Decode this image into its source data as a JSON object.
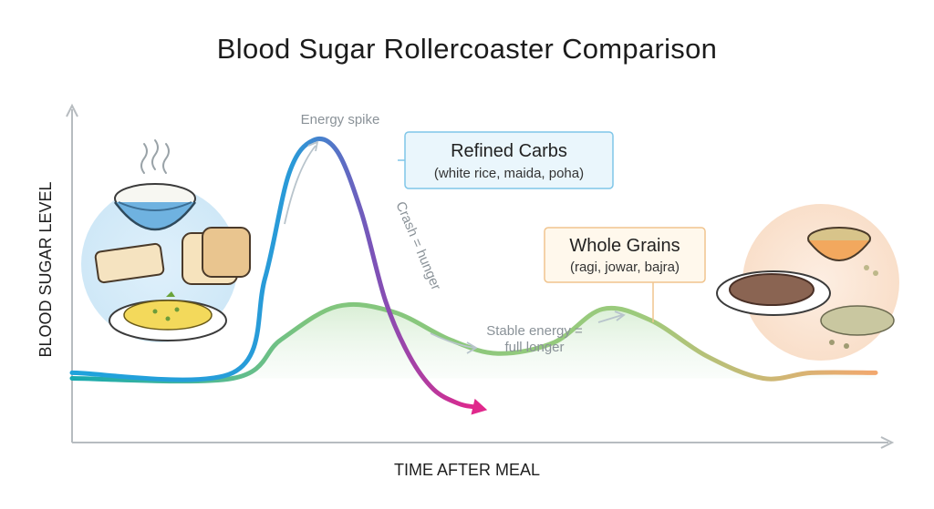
{
  "chart_data": {
    "type": "line",
    "title": "Blood Sugar Rollercoaster Comparison",
    "xlabel": "TIME AFTER MEAL",
    "ylabel": "BLOOD SUGAR LEVEL",
    "xlim": [
      0,
      100
    ],
    "ylim": [
      0,
      100
    ],
    "grid": false,
    "series": [
      {
        "name": "Refined Carbs",
        "subtitle": "(white rice, maida, poha)",
        "color_start": "#1fa3dc",
        "color_end": "#e0288c",
        "x": [
          0,
          20,
          24,
          27,
          30,
          33,
          36,
          39,
          42,
          45,
          48,
          51
        ],
        "y": [
          14,
          14,
          48,
          86,
          98,
          94,
          72,
          40,
          20,
          8,
          3,
          1
        ]
      },
      {
        "name": "Whole Grains",
        "subtitle": "(ragi, jowar, bajra)",
        "color_start": "#16a9b0",
        "color_mid": "#8bc77a",
        "color_end": "#f2a86e",
        "x": [
          0,
          20,
          26,
          33,
          40,
          47,
          53,
          60,
          66,
          72,
          79,
          86,
          92,
          100
        ],
        "y": [
          12,
          12,
          26,
          38,
          36,
          26,
          21,
          25,
          37,
          33,
          20,
          12,
          14,
          14
        ]
      }
    ],
    "annotations": {
      "energy_spike": "Energy spike",
      "crash": "Crash = hunger",
      "stable_line1": "Stable energy =",
      "stable_line2": "full longer"
    }
  },
  "icons": {
    "left": [
      "rice-bowl-icon",
      "bread-slices-icon",
      "poha-plate-icon"
    ],
    "right": [
      "millet-roti-icon",
      "millet-grains-bowl-icon",
      "grain-pile-icon"
    ]
  }
}
